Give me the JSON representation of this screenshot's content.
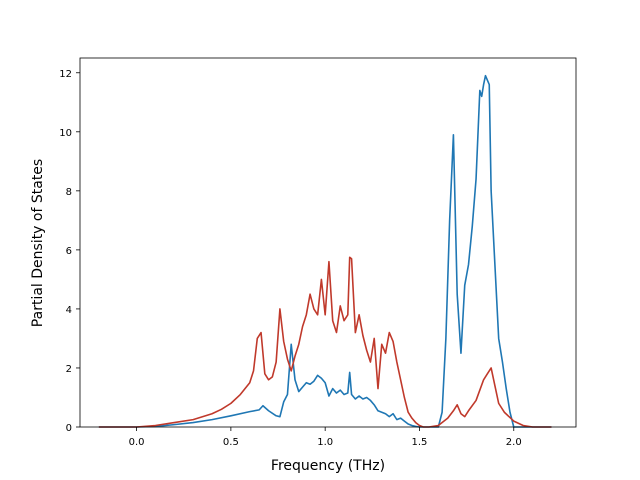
{
  "chart_data": {
    "type": "line",
    "title": "",
    "xlabel": "Frequency (THz)",
    "ylabel": "Partial Density of States",
    "xlim": [
      -0.3,
      2.33
    ],
    "ylim": [
      0,
      12.5
    ],
    "xticks": [
      0.0,
      0.5,
      1.0,
      1.5,
      2.0
    ],
    "xtick_labels": [
      "0.0",
      "0.5",
      "1.0",
      "1.5",
      "2.0"
    ],
    "yticks": [
      0,
      2,
      4,
      6,
      8,
      10,
      12
    ],
    "ytick_labels": [
      "0",
      "2",
      "4",
      "6",
      "8",
      "10",
      "12"
    ],
    "grid": false,
    "series": [
      {
        "color": "#1f77b4",
        "x": [
          -0.2,
          0.0,
          0.1,
          0.2,
          0.3,
          0.4,
          0.5,
          0.6,
          0.65,
          0.67,
          0.7,
          0.74,
          0.76,
          0.78,
          0.8,
          0.82,
          0.84,
          0.86,
          0.88,
          0.9,
          0.92,
          0.94,
          0.96,
          0.98,
          1.0,
          1.02,
          1.04,
          1.06,
          1.08,
          1.1,
          1.12,
          1.13,
          1.14,
          1.16,
          1.18,
          1.2,
          1.22,
          1.24,
          1.26,
          1.28,
          1.3,
          1.32,
          1.34,
          1.36,
          1.38,
          1.4,
          1.42,
          1.44,
          1.46,
          1.48,
          1.5,
          1.52,
          1.55,
          1.58,
          1.6,
          1.62,
          1.64,
          1.66,
          1.68,
          1.7,
          1.72,
          1.74,
          1.76,
          1.78,
          1.8,
          1.82,
          1.83,
          1.84,
          1.85,
          1.87,
          1.88,
          1.9,
          1.92,
          1.94,
          1.96,
          1.98,
          2.0,
          2.02,
          2.1,
          2.2
        ],
        "values": [
          0.0,
          0.0,
          0.02,
          0.08,
          0.15,
          0.25,
          0.38,
          0.52,
          0.58,
          0.72,
          0.55,
          0.38,
          0.35,
          0.85,
          1.1,
          2.8,
          1.6,
          1.2,
          1.35,
          1.5,
          1.45,
          1.55,
          1.75,
          1.65,
          1.5,
          1.05,
          1.3,
          1.15,
          1.25,
          1.1,
          1.15,
          1.85,
          1.1,
          0.95,
          1.05,
          0.95,
          1.0,
          0.9,
          0.75,
          0.55,
          0.5,
          0.45,
          0.35,
          0.45,
          0.25,
          0.3,
          0.2,
          0.1,
          0.05,
          0.02,
          0.0,
          0.0,
          0.0,
          0.0,
          0.0,
          0.5,
          3.0,
          7.0,
          9.9,
          4.5,
          2.5,
          4.8,
          5.5,
          6.8,
          8.4,
          11.4,
          11.2,
          11.6,
          11.9,
          11.6,
          8.0,
          5.5,
          3.0,
          2.2,
          1.3,
          0.5,
          0.0,
          0.0,
          0.0,
          0.0
        ]
      },
      {
        "color": "#c0392b",
        "x": [
          -0.2,
          0.0,
          0.1,
          0.2,
          0.3,
          0.4,
          0.45,
          0.5,
          0.55,
          0.6,
          0.62,
          0.64,
          0.66,
          0.68,
          0.7,
          0.72,
          0.74,
          0.76,
          0.78,
          0.8,
          0.82,
          0.84,
          0.86,
          0.88,
          0.9,
          0.92,
          0.94,
          0.96,
          0.98,
          1.0,
          1.02,
          1.04,
          1.06,
          1.08,
          1.1,
          1.12,
          1.13,
          1.14,
          1.16,
          1.18,
          1.2,
          1.22,
          1.24,
          1.26,
          1.28,
          1.3,
          1.32,
          1.34,
          1.36,
          1.38,
          1.4,
          1.42,
          1.44,
          1.46,
          1.48,
          1.5,
          1.52,
          1.55,
          1.6,
          1.65,
          1.68,
          1.7,
          1.72,
          1.74,
          1.76,
          1.8,
          1.84,
          1.86,
          1.88,
          1.9,
          1.92,
          1.95,
          2.0,
          2.05,
          2.1,
          2.2
        ],
        "values": [
          0.0,
          0.0,
          0.05,
          0.15,
          0.25,
          0.45,
          0.6,
          0.8,
          1.1,
          1.5,
          1.9,
          3.0,
          3.2,
          1.8,
          1.6,
          1.7,
          2.2,
          4.0,
          2.9,
          2.3,
          1.9,
          2.4,
          2.8,
          3.4,
          3.8,
          4.5,
          4.0,
          3.8,
          5.0,
          3.8,
          5.6,
          3.6,
          3.2,
          4.1,
          3.6,
          3.8,
          5.75,
          5.7,
          3.2,
          3.8,
          3.1,
          2.6,
          2.2,
          3.0,
          1.3,
          2.8,
          2.5,
          3.2,
          2.9,
          2.2,
          1.6,
          1.0,
          0.5,
          0.3,
          0.15,
          0.05,
          0.0,
          0.0,
          0.05,
          0.3,
          0.55,
          0.75,
          0.45,
          0.35,
          0.55,
          0.9,
          1.6,
          1.8,
          2.0,
          1.4,
          0.8,
          0.5,
          0.2,
          0.05,
          0.0,
          0.0
        ]
      }
    ]
  }
}
